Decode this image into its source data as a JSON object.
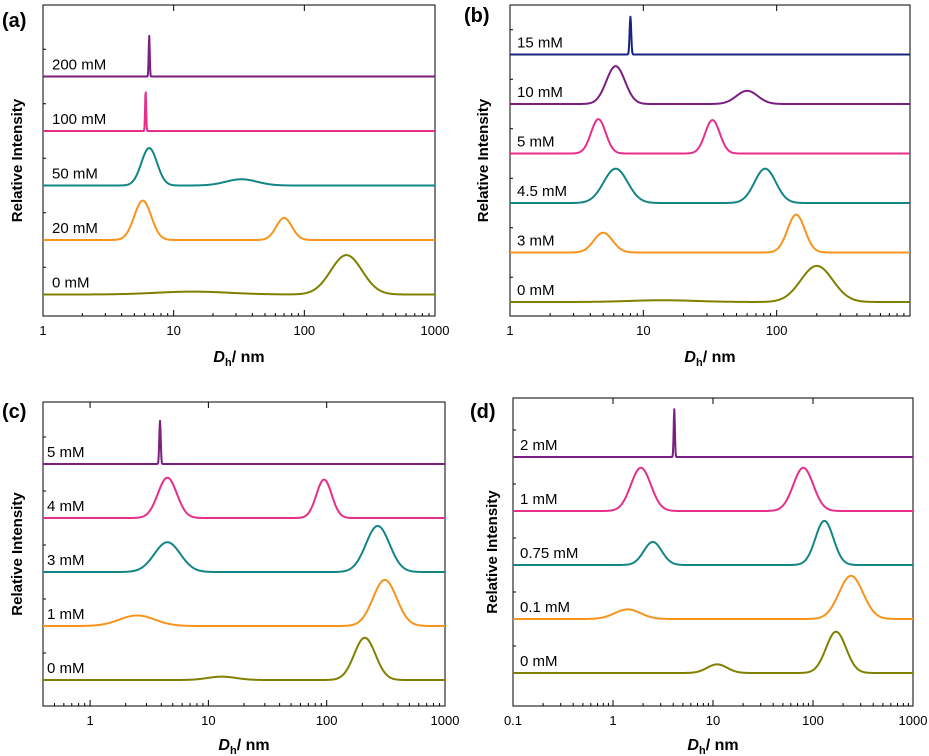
{
  "chart_data": [
    {
      "type": "line",
      "panel_label": "(a)",
      "xlabel_main": "D",
      "xlabel_sub": "h",
      "xlabel_unit": "/ nm",
      "ylabel": "Relative Intensity",
      "xscale": "log",
      "xlim": [
        1,
        1000
      ],
      "xticks": [
        1,
        10,
        100,
        1000
      ],
      "xtick_labels": [
        "1",
        "10",
        "100",
        "1000"
      ],
      "series": [
        {
          "name": "0 mM",
          "color": "#808000",
          "baseline_level": 0,
          "peaks": [
            {
              "x": 14,
              "height": 0.06,
              "width": 0.28
            },
            {
              "x": 210,
              "height": 0.82,
              "width": 0.12
            }
          ]
        },
        {
          "name": "20 mM",
          "color": "#f7941d",
          "baseline_level": 1,
          "peaks": [
            {
              "x": 5.8,
              "height": 0.82,
              "width": 0.065
            },
            {
              "x": 70,
              "height": 0.46,
              "width": 0.06
            }
          ]
        },
        {
          "name": "50 mM",
          "color": "#138585",
          "baseline_level": 2,
          "peaks": [
            {
              "x": 6.5,
              "height": 0.78,
              "width": 0.06
            },
            {
              "x": 33,
              "height": 0.13,
              "width": 0.12
            }
          ]
        },
        {
          "name": "100 mM",
          "color": "#e62e8b",
          "baseline_level": 3,
          "peaks": [
            {
              "x": 6.1,
              "height": 0.85,
              "width": 0.004
            }
          ]
        },
        {
          "name": "200 mM",
          "color": "#7a1e82",
          "baseline_level": 4,
          "peaks": [
            {
              "x": 6.5,
              "height": 0.85,
              "width": 0.004
            }
          ]
        }
      ]
    },
    {
      "type": "line",
      "panel_label": "(b)",
      "xlabel_main": "D",
      "xlabel_sub": "h",
      "xlabel_unit": "/ nm",
      "ylabel": "Relative Intensity",
      "xscale": "log",
      "xlim": [
        1,
        1000
      ],
      "xticks": [
        1,
        10,
        100
      ],
      "xtick_labels": [
        "1",
        "10",
        "100"
      ],
      "series": [
        {
          "name": "0 mM",
          "color": "#808000",
          "baseline_level": 0,
          "peaks": [
            {
              "x": 14,
              "height": 0.04,
              "width": 0.25
            },
            {
              "x": 200,
              "height": 0.82,
              "width": 0.12
            }
          ]
        },
        {
          "name": "3 mM",
          "color": "#f7941d",
          "baseline_level": 1,
          "peaks": [
            {
              "x": 5,
              "height": 0.45,
              "width": 0.07
            },
            {
              "x": 140,
              "height": 0.86,
              "width": 0.065
            }
          ]
        },
        {
          "name": "4.5 mM",
          "color": "#138585",
          "baseline_level": 2,
          "peaks": [
            {
              "x": 6.2,
              "height": 0.78,
              "width": 0.09
            },
            {
              "x": 82,
              "height": 0.78,
              "width": 0.08
            }
          ]
        },
        {
          "name": "5 mM",
          "color": "#e62e8b",
          "baseline_level": 3,
          "peaks": [
            {
              "x": 4.6,
              "height": 0.78,
              "width": 0.055
            },
            {
              "x": 33,
              "height": 0.76,
              "width": 0.055
            }
          ]
        },
        {
          "name": "10 mM",
          "color": "#7a1e82",
          "baseline_level": 4,
          "peaks": [
            {
              "x": 6.2,
              "height": 0.86,
              "width": 0.07
            },
            {
              "x": 60,
              "height": 0.3,
              "width": 0.08
            }
          ]
        },
        {
          "name": "15 mM",
          "color": "#1a237e",
          "baseline_level": 5,
          "peaks": [
            {
              "x": 8,
              "height": 0.86,
              "width": 0.006
            }
          ]
        }
      ]
    },
    {
      "type": "line",
      "panel_label": "(c)",
      "xlabel_main": "D",
      "xlabel_sub": "h",
      "xlabel_unit": "/ nm",
      "ylabel": "Relative Intensity",
      "xscale": "log",
      "xlim": [
        0.4,
        1000
      ],
      "xticks": [
        1,
        10,
        100,
        1000
      ],
      "xtick_labels": [
        "1",
        "10",
        "100",
        "1000"
      ],
      "series": [
        {
          "name": "0 mM",
          "color": "#808000",
          "baseline_level": 0,
          "peaks": [
            {
              "x": 13,
              "height": 0.07,
              "width": 0.12
            },
            {
              "x": 210,
              "height": 0.88,
              "width": 0.09
            }
          ]
        },
        {
          "name": "1 mM",
          "color": "#f7941d",
          "baseline_level": 1,
          "peaks": [
            {
              "x": 2.5,
              "height": 0.22,
              "width": 0.15
            },
            {
              "x": 310,
              "height": 0.96,
              "width": 0.1
            }
          ]
        },
        {
          "name": "3 mM",
          "color": "#138585",
          "baseline_level": 2,
          "peaks": [
            {
              "x": 4.5,
              "height": 0.62,
              "width": 0.11
            },
            {
              "x": 270,
              "height": 0.96,
              "width": 0.1
            }
          ]
        },
        {
          "name": "4 mM",
          "color": "#e62e8b",
          "baseline_level": 3,
          "peaks": [
            {
              "x": 4.5,
              "height": 0.84,
              "width": 0.08
            },
            {
              "x": 95,
              "height": 0.8,
              "width": 0.065
            }
          ]
        },
        {
          "name": "5 mM",
          "color": "#7a1e82",
          "baseline_level": 4,
          "peaks": [
            {
              "x": 3.9,
              "height": 0.9,
              "width": 0.006
            }
          ]
        }
      ]
    },
    {
      "type": "line",
      "panel_label": "(d)",
      "xlabel_main": "D",
      "xlabel_sub": "h",
      "xlabel_unit": "/ nm",
      "ylabel": "Relative Intensity",
      "xscale": "log",
      "xlim": [
        0.1,
        1000
      ],
      "xticks": [
        0.1,
        1,
        10,
        100,
        1000
      ],
      "xtick_labels": [
        "0.1",
        "1",
        "10",
        "100",
        "1000"
      ],
      "series": [
        {
          "name": "0 mM",
          "color": "#808000",
          "baseline_level": 0,
          "peaks": [
            {
              "x": 11,
              "height": 0.18,
              "width": 0.1
            },
            {
              "x": 170,
              "height": 0.86,
              "width": 0.1
            }
          ]
        },
        {
          "name": "0.1 mM",
          "color": "#f7941d",
          "baseline_level": 1,
          "peaks": [
            {
              "x": 1.4,
              "height": 0.2,
              "width": 0.13
            },
            {
              "x": 240,
              "height": 0.9,
              "width": 0.12
            }
          ]
        },
        {
          "name": "0.75 mM",
          "color": "#138585",
          "baseline_level": 2,
          "peaks": [
            {
              "x": 2.5,
              "height": 0.48,
              "width": 0.09
            },
            {
              "x": 130,
              "height": 0.92,
              "width": 0.09
            }
          ]
        },
        {
          "name": "1 mM",
          "color": "#e62e8b",
          "baseline_level": 3,
          "peaks": [
            {
              "x": 1.9,
              "height": 0.9,
              "width": 0.1
            },
            {
              "x": 80,
              "height": 0.9,
              "width": 0.1
            }
          ]
        },
        {
          "name": "2 mM",
          "color": "#7a1e82",
          "baseline_level": 4,
          "peaks": [
            {
              "x": 4.1,
              "height": 1.0,
              "width": 0.006
            }
          ]
        }
      ]
    }
  ]
}
